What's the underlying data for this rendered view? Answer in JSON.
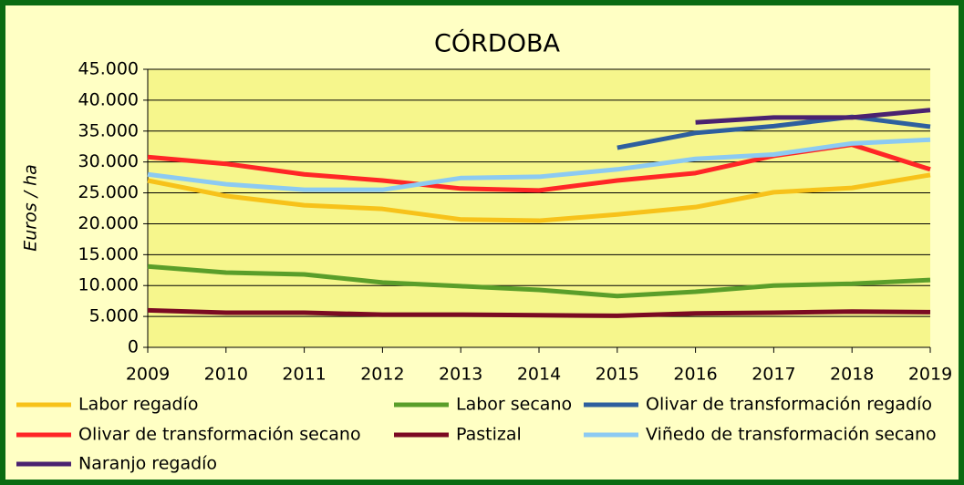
{
  "chart_data": {
    "type": "line",
    "title": "CÓRDOBA",
    "y_label": "Euros / ha",
    "categories": [
      "2009",
      "2010",
      "2011",
      "2012",
      "2013",
      "2014",
      "2015",
      "2016",
      "2017",
      "2018",
      "2019"
    ],
    "ylim": [
      0,
      45000
    ],
    "yticks": [
      0,
      {
        "value": 5000,
        "label": "5.000"
      },
      {
        "value": 10000,
        "label": "10.000"
      },
      {
        "value": 15000,
        "label": "15.000"
      },
      {
        "value": 20000,
        "label": "20.000"
      },
      {
        "value": 25000,
        "label": "25.000"
      },
      {
        "value": 30000,
        "label": "30.000"
      },
      {
        "value": 35000,
        "label": "35.000"
      },
      {
        "value": 40000,
        "label": "40.000"
      },
      {
        "value": 45000,
        "label": "45.000"
      }
    ],
    "grid": true,
    "legend": "bottom",
    "series": [
      {
        "name": "Labor regadío",
        "color": "#f7c21a",
        "values": [
          27000,
          24500,
          23000,
          22400,
          20700,
          20500,
          21500,
          22700,
          25100,
          25800,
          27900
        ]
      },
      {
        "name": "Labor secano",
        "color": "#5a9e2a",
        "values": [
          13100,
          12100,
          11800,
          10500,
          9900,
          9300,
          8300,
          9000,
          10000,
          10300,
          10900
        ]
      },
      {
        "name": "Olivar de transformación regadío",
        "color": "#2e5f9e",
        "values": [
          null,
          null,
          null,
          null,
          null,
          null,
          32300,
          34700,
          35800,
          37300,
          35700
        ]
      },
      {
        "name": "Olivar de transformación secano",
        "color": "#ff2626",
        "values": [
          30800,
          29700,
          28000,
          27000,
          25700,
          25400,
          27000,
          28200,
          31000,
          32800,
          28800
        ]
      },
      {
        "name": "Pastizal",
        "color": "#7b0a22",
        "values": [
          6000,
          5600,
          5600,
          5300,
          5300,
          5200,
          5100,
          5500,
          5600,
          5800,
          5700
        ]
      },
      {
        "name": "Viñedo de transformación secano",
        "color": "#8ccaf2",
        "values": [
          28000,
          26400,
          25500,
          25500,
          27400,
          27600,
          28800,
          30500,
          31200,
          33000,
          33600
        ]
      },
      {
        "name": "Naranjo regadío",
        "color": "#4a2270",
        "values": [
          null,
          null,
          null,
          null,
          null,
          null,
          null,
          36400,
          37200,
          37200,
          38400
        ]
      }
    ]
  }
}
